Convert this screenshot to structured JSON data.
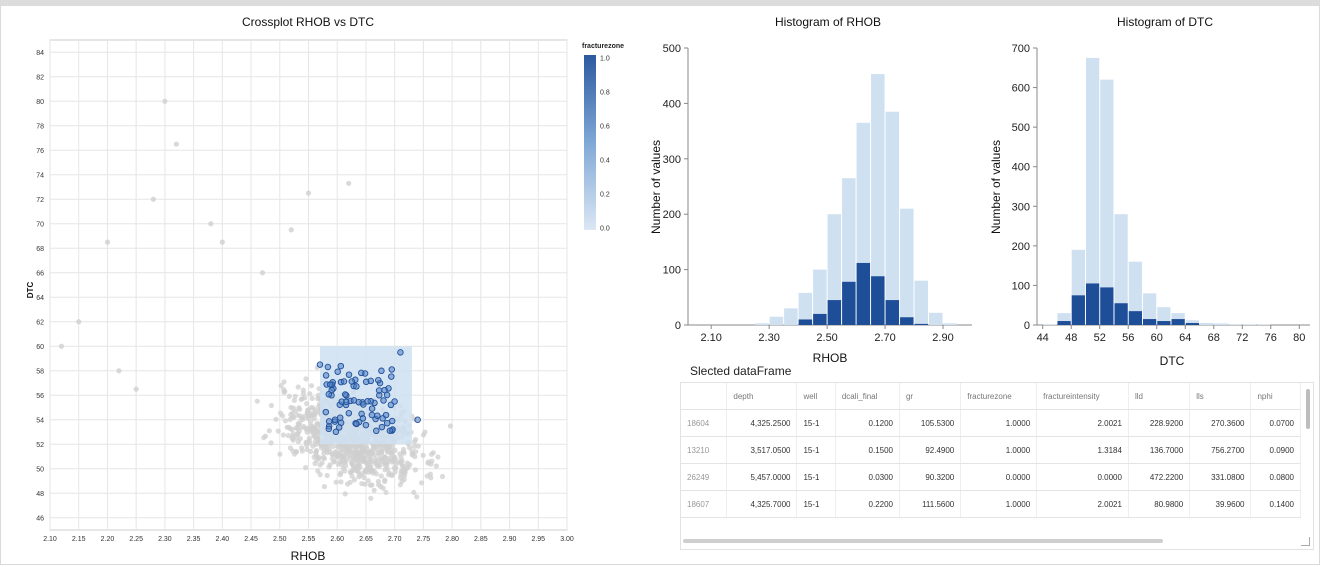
{
  "colors": {
    "light": "#cfe0f1",
    "dark": "#1f4e99",
    "gray": "#cfcfcf",
    "selected_fill": "#4f7fc4"
  },
  "chart_data": [
    {
      "type": "scatter",
      "title": "Crossplot RHOB vs DTC",
      "xlabel": "RHOB",
      "ylabel": "DTC",
      "xlim": [
        2.1,
        3.0
      ],
      "ylim": [
        45,
        85
      ],
      "xticks": [
        "2.10",
        "2.15",
        "2.20",
        "2.25",
        "2.30",
        "2.35",
        "2.40",
        "2.45",
        "2.50",
        "2.55",
        "2.60",
        "2.65",
        "2.70",
        "2.75",
        "2.80",
        "2.85",
        "2.90",
        "2.95",
        "3.00"
      ],
      "yticks": [
        "46",
        "48",
        "50",
        "52",
        "54",
        "56",
        "58",
        "60",
        "62",
        "64",
        "66",
        "68",
        "70",
        "72",
        "74",
        "76",
        "78",
        "80",
        "82",
        "84"
      ],
      "grid": true,
      "legend": {
        "title": "fracturezone",
        "ticks": [
          "1.0",
          "0.8",
          "0.6",
          "0.4",
          "0.2",
          "0.0"
        ],
        "placement": "top-right"
      },
      "selection_brush": {
        "x": [
          2.57,
          2.73
        ],
        "y": [
          52,
          60
        ]
      }
    },
    {
      "type": "bar",
      "title": "Histogram of RHOB",
      "xlabel": "RHOB",
      "ylabel": "Number of values",
      "xticks": [
        "2.10",
        "2.30",
        "2.50",
        "2.70",
        "2.90"
      ],
      "yticks": [
        "0",
        "100",
        "200",
        "300",
        "400",
        "500"
      ],
      "ylim": [
        0,
        500
      ],
      "x_bins": [
        2.1,
        2.15,
        2.2,
        2.25,
        2.3,
        2.35,
        2.4,
        2.45,
        2.5,
        2.55,
        2.6,
        2.65,
        2.7,
        2.75,
        2.8,
        2.85,
        2.9,
        2.95
      ],
      "bin_width": 0.05,
      "series": [
        {
          "values": [
            0,
            0,
            0,
            3,
            15,
            30,
            58,
            100,
            200,
            265,
            365,
            453,
            385,
            210,
            80,
            22,
            3,
            0
          ]
        },
        {
          "values": [
            0,
            0,
            0,
            0,
            0,
            0,
            10,
            20,
            45,
            78,
            112,
            88,
            45,
            14,
            2,
            0,
            0,
            0
          ]
        }
      ]
    },
    {
      "type": "bar",
      "title": "Histogram of DTC",
      "xlabel": "DTC",
      "ylabel": "Number of values",
      "xticks": [
        "44",
        "48",
        "52",
        "56",
        "60",
        "64",
        "68",
        "72",
        "76",
        "80"
      ],
      "yticks": [
        "0",
        "100",
        "200",
        "300",
        "400",
        "500",
        "600",
        "700"
      ],
      "ylim": [
        0,
        700
      ],
      "x_bins": [
        44,
        46,
        48,
        50,
        52,
        54,
        56,
        58,
        60,
        62,
        64,
        66,
        68,
        70,
        72,
        74,
        76,
        78,
        80
      ],
      "bin_width": 2,
      "series": [
        {
          "values": [
            2,
            30,
            190,
            675,
            620,
            280,
            160,
            80,
            45,
            30,
            12,
            5,
            4,
            2,
            1,
            1,
            0,
            0,
            0
          ]
        },
        {
          "values": [
            0,
            10,
            75,
            105,
            95,
            55,
            35,
            15,
            10,
            15,
            5,
            0,
            0,
            0,
            0,
            0,
            0,
            0,
            0
          ]
        }
      ]
    }
  ],
  "table": {
    "title": "Slected dataFrame",
    "columns": [
      "",
      "depth",
      "well",
      "dcali_final",
      "gr",
      "fracturezone",
      "fractureintensity",
      "lld",
      "lls",
      "nphi"
    ],
    "rows": [
      [
        "18604",
        "4,325.2500",
        "15-1",
        "0.1200",
        "105.5300",
        "1.0000",
        "2.0021",
        "228.9200",
        "270.3600",
        "0.0700"
      ],
      [
        "13210",
        "3,517.0500",
        "15-1",
        "0.1500",
        "92.4900",
        "1.0000",
        "1.3184",
        "136.7000",
        "756.2700",
        "0.0900"
      ],
      [
        "26249",
        "5,457.0000",
        "15-1",
        "0.0300",
        "90.3200",
        "0.0000",
        "0.0000",
        "472.2200",
        "331.0800",
        "0.0800"
      ],
      [
        "18607",
        "4,325.7000",
        "15-1",
        "0.2200",
        "111.5600",
        "1.0000",
        "2.0021",
        "80.9800",
        "39.9600",
        "0.1400"
      ]
    ]
  }
}
